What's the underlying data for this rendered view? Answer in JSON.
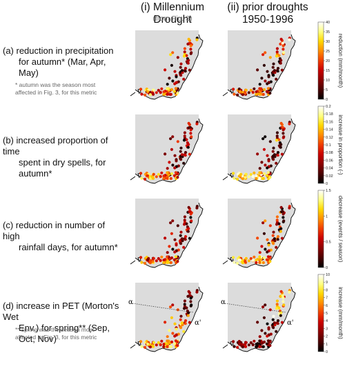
{
  "columns": [
    {
      "title": "(i) Millennium Drought",
      "subtitle": "(from Fig. 3)"
    },
    {
      "title": "(ii) prior droughts",
      "title2": "1950-1996"
    }
  ],
  "rows": [
    {
      "label_lines": [
        "(a) reduction in precipitation",
        "for autumn* (Mar, Apr, May)"
      ],
      "notes": [
        "* autumn was the season most",
        "affected in Fig. 3, for this metric"
      ]
    },
    {
      "label_lines": [
        "(b) increased proportion of time",
        "spent in dry spells, for autumn*"
      ]
    },
    {
      "label_lines": [
        "(c) reduction in number of high",
        "rainfall days, for autumn*"
      ]
    },
    {
      "label_lines": [
        "(d) increase in PET (Morton's Wet",
        "Env.) for spring** (Sep, Oct, Nov)"
      ],
      "notes": [
        "** spring was the season most",
        "affected in Fig. 3, for this metric"
      ]
    }
  ],
  "section_labels": {
    "alpha": "α",
    "alpha_prime": "α'"
  },
  "colors": {
    "land": "#dcdcdc",
    "coast": "#000000",
    "cmap": [
      "#000000",
      "#4a0000",
      "#8b0000",
      "#c80000",
      "#f03c00",
      "#ff8c00",
      "#ffd700",
      "#ffff80",
      "#ffffff"
    ]
  },
  "chart_data": [
    {
      "type": "scatter",
      "panel": "a",
      "colorbar_label": "reduction (mm/month)",
      "ticks": [
        "0",
        "5",
        "10",
        "15",
        "20",
        "25",
        "30",
        "35",
        "40"
      ],
      "ylim": [
        0,
        40
      ]
    },
    {
      "type": "scatter",
      "panel": "b",
      "colorbar_label": "increase in proportion (-)",
      "ticks": [
        "0",
        "0.02",
        "0.04",
        "0.06",
        "0.08",
        "0.1",
        "0.12",
        "0.14",
        "0.16",
        "0.18",
        "0.2"
      ],
      "ylim": [
        0,
        0.2
      ]
    },
    {
      "type": "scatter",
      "panel": "c",
      "colorbar_label": "decrease (events / season)",
      "ticks": [
        "0",
        "0.5",
        "1",
        "1.5"
      ],
      "ylim": [
        0,
        1.5
      ]
    },
    {
      "type": "scatter",
      "panel": "d",
      "colorbar_label": "increase (mm/month)",
      "ticks": [
        "0",
        "1",
        "2",
        "3",
        "4",
        "5",
        "6",
        "7",
        "8",
        "9",
        "10"
      ],
      "ylim": [
        0,
        10
      ]
    }
  ]
}
